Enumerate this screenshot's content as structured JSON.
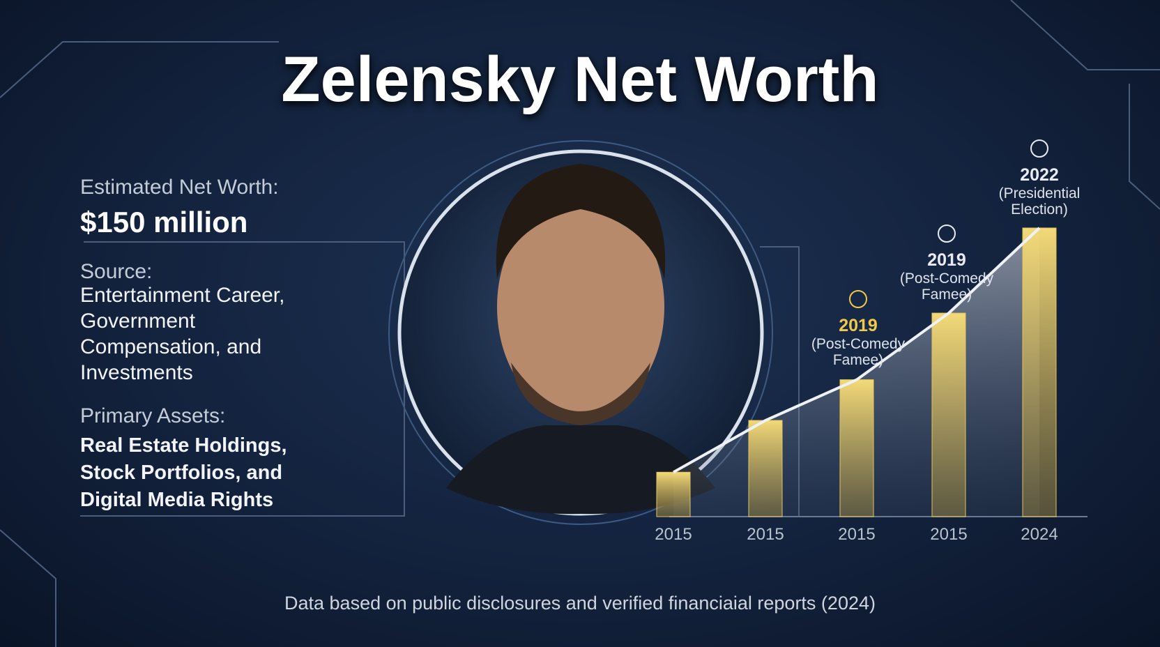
{
  "header": {
    "title": "Zelensky Net Worth"
  },
  "summary": {
    "net_worth_label": "Estimated Net Worth:",
    "net_worth_value": "$150 million",
    "source_label": "Source:",
    "source_text": "Entertainment Career, Government Compensation, and Investments",
    "assets_label": "Primary Assets:",
    "assets_text": "Real Estate Holdings, Stock Portfolios, and Digital Media Rights"
  },
  "chart_data": {
    "type": "bar",
    "categories": [
      "2015",
      "2015",
      "2015",
      "2015",
      "2024"
    ],
    "values": [
      60,
      130,
      185,
      275,
      390
    ],
    "color": "#e3c45a",
    "annotations": [
      {
        "year": "2019",
        "lines": [
          "(Post-Comedy",
          "Famee)"
        ],
        "color": "#f0c94a"
      },
      {
        "year": "2019",
        "lines": [
          "(Post-Comedy",
          "Famee)"
        ],
        "color": "#e8ecf2"
      },
      {
        "year": "2022",
        "lines": [
          "(Presidential",
          "Election)"
        ],
        "color": "#e8ecf2"
      }
    ]
  },
  "footer": {
    "note": "Data based on public disclosures and verified financiaial reports (2024)"
  }
}
